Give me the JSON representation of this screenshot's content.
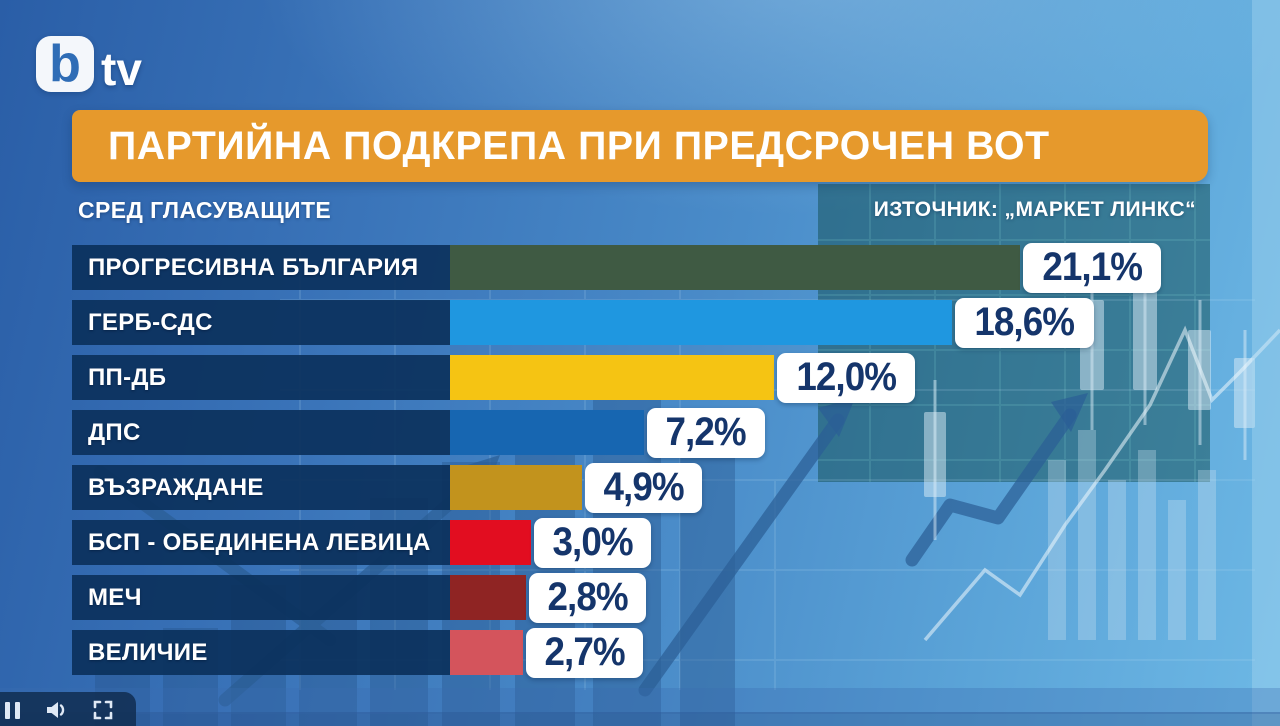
{
  "brand": {
    "logo_b": "b",
    "logo_tv": "tv"
  },
  "chart_data": {
    "type": "bar",
    "orientation": "horizontal",
    "title": "ПАРТИЙНА ПОДКРЕПА ПРИ ПРЕДСРОЧЕН ВОТ",
    "subtitle": "СРЕД ГЛАСУВАЩИТЕ",
    "source": "ИЗТОЧНИК: „МАРКЕТ ЛИНКС“",
    "unit": "%",
    "decimal_separator": ",",
    "categories": [
      "ПРОГРЕСИВНА БЪЛГАРИЯ",
      "ГЕРБ-СДС",
      "ПП-ДБ",
      "ДПС",
      "ВЪЗРАЖДАНЕ",
      "БСП - ОБЕДИНЕНА ЛЕВИЦА",
      "МЕЧ",
      "ВЕЛИЧИЕ"
    ],
    "values": [
      21.1,
      18.6,
      12.0,
      7.2,
      4.9,
      3.0,
      2.8,
      2.7
    ],
    "value_labels": [
      "21,1%",
      "18,6%",
      "12,0%",
      "7,2%",
      "4,9%",
      "3,0%",
      "2,8%",
      "2,7%"
    ],
    "bar_colors": [
      "#3f5a43",
      "#1f97e0",
      "#f5c413",
      "#1766b1",
      "#c2931d",
      "#e20d20",
      "#8f2423",
      "#d4545c"
    ],
    "axis_max_percent": 28,
    "pixels_per_percent": 27,
    "legend": false,
    "grid": false
  },
  "colors": {
    "title_band": "#e6992c",
    "label_background": "#0b315c",
    "value_text": "#15356b",
    "background_top_left": "#2a5ea7",
    "background_bottom_right": "#6db8e5"
  },
  "player": {
    "icons": [
      "pause-icon",
      "volume-icon",
      "fullscreen-icon"
    ]
  }
}
